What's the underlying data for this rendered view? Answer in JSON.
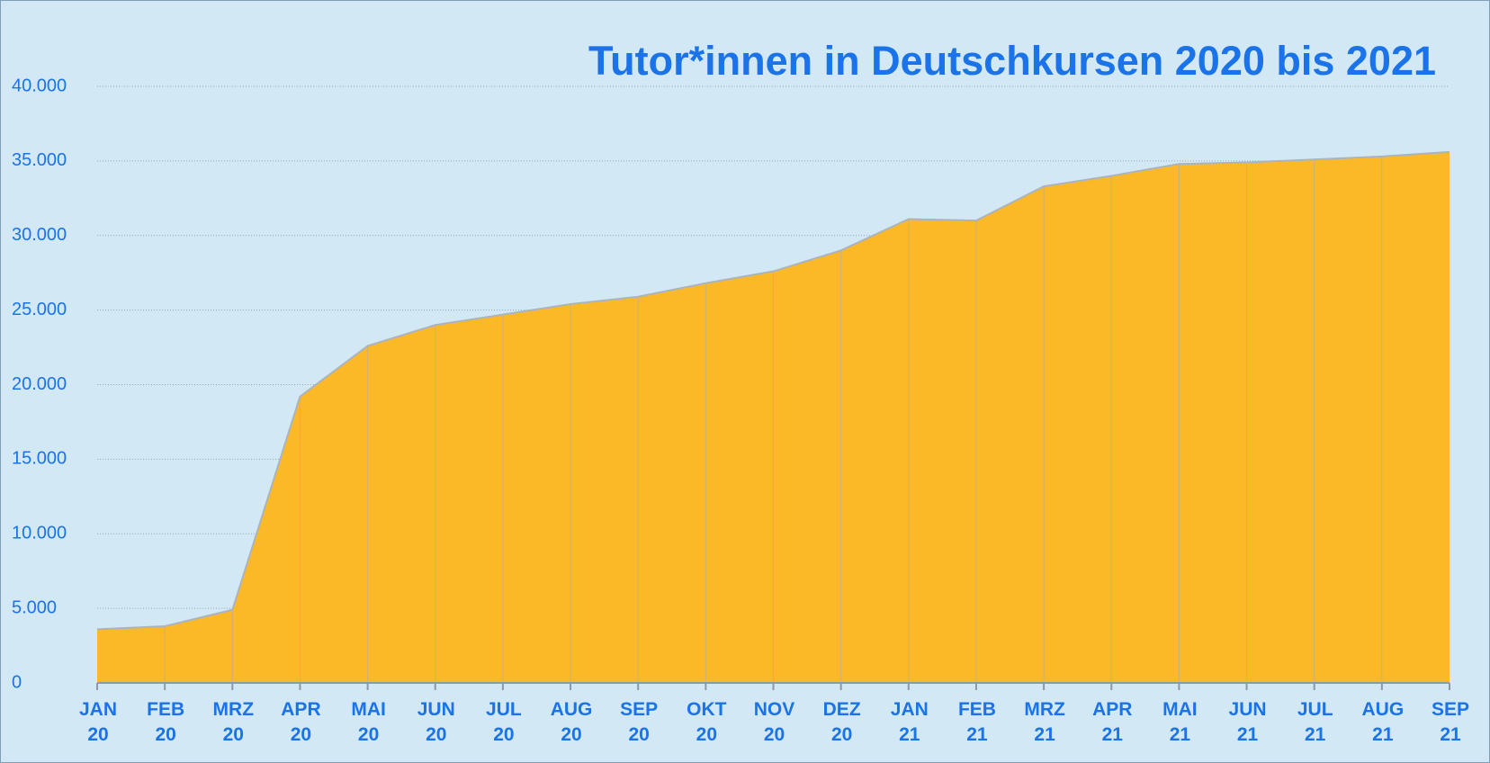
{
  "chart_data": {
    "type": "area",
    "title": "Tutor*innen in Deutschkursen 2020 bis 2021",
    "categories": [
      "JAN 20",
      "FEB 20",
      "MRZ 20",
      "APR 20",
      "MAI 20",
      "JUN 20",
      "JUL 20",
      "AUG 20",
      "SEP 20",
      "OKT 20",
      "NOV 20",
      "DEZ 20",
      "JAN 21",
      "FEB 21",
      "MRZ 21",
      "APR 21",
      "MAI 21",
      "JUN 21",
      "JUL 21",
      "AUG 21",
      "SEP 21"
    ],
    "values": [
      3600,
      3800,
      4900,
      19200,
      22600,
      24000,
      24700,
      25400,
      25900,
      26800,
      27600,
      29000,
      31100,
      31000,
      33300,
      34000,
      34800,
      34900,
      35100,
      35300,
      35600
    ],
    "color": "#fbb827",
    "ylim": [
      0,
      40000
    ],
    "yticks": [
      0,
      {
        "value": 5000,
        "label": "5.000"
      },
      {
        "value": 10000,
        "label": "10.000"
      },
      {
        "value": 15000,
        "label": "15.000"
      },
      {
        "value": 20000,
        "label": "20.000"
      },
      {
        "value": 25000,
        "label": "25.000"
      },
      {
        "value": 30000,
        "label": "30.000"
      },
      {
        "value": 35000,
        "label": "35.000"
      },
      {
        "value": 40000,
        "label": "40.000"
      }
    ],
    "grid": true
  }
}
